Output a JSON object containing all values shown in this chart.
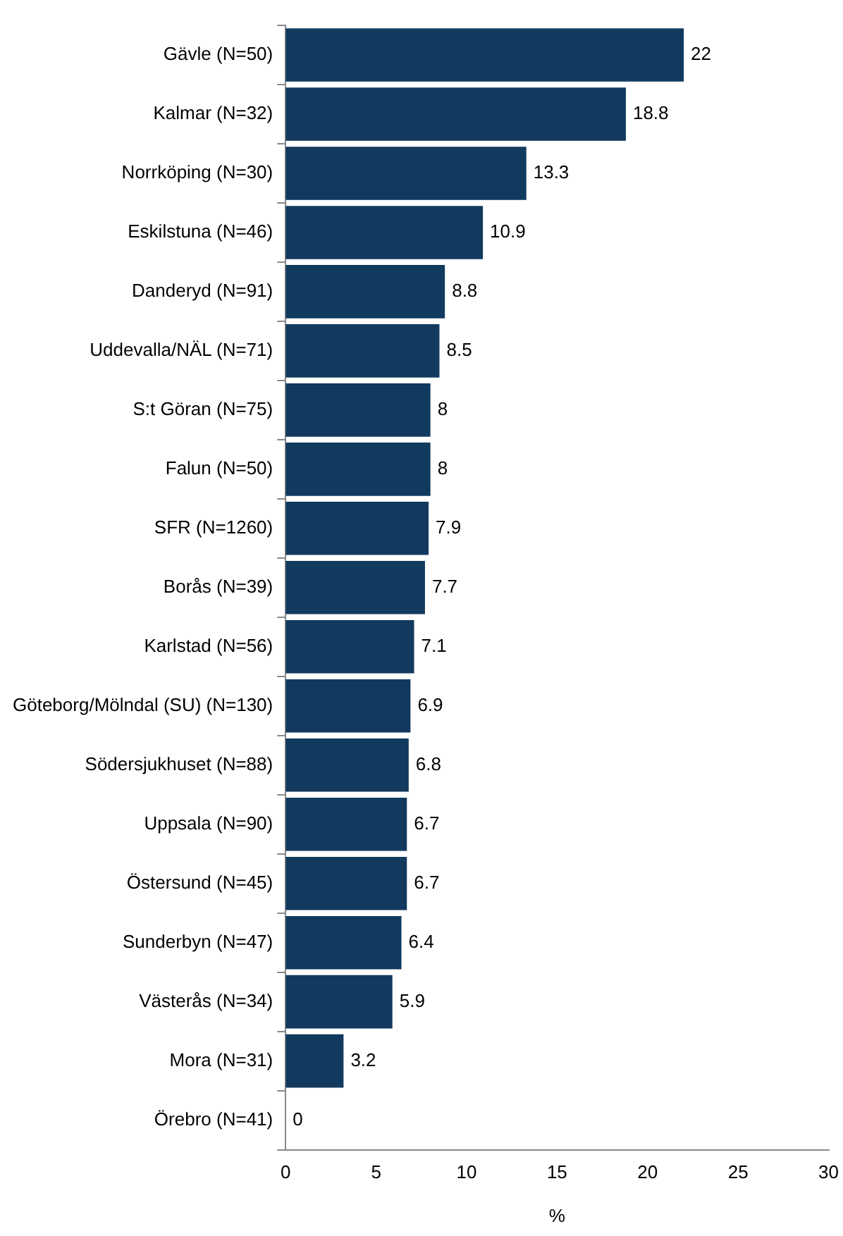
{
  "chart_data": {
    "type": "bar",
    "orientation": "horizontal",
    "xlabel": "%",
    "categories": [
      "Gävle (N=50)",
      "Kalmar (N=32)",
      "Norrköping (N=30)",
      "Eskilstuna (N=46)",
      "Danderyd (N=91)",
      "Uddevalla/NÄL (N=71)",
      "S:t Göran (N=75)",
      "Falun (N=50)",
      "SFR (N=1260)",
      "Borås (N=39)",
      "Karlstad (N=56)",
      "Göteborg/Mölndal (SU) (N=130)",
      "Södersjukhuset (N=88)",
      "Uppsala (N=90)",
      "Östersund (N=45)",
      "Sunderbyn (N=47)",
      "Västerås (N=34)",
      "Mora (N=31)",
      "Örebro (N=41)"
    ],
    "values": [
      22,
      18.8,
      13.3,
      10.9,
      8.8,
      8.5,
      8,
      8,
      7.9,
      7.7,
      7.1,
      6.9,
      6.8,
      6.7,
      6.7,
      6.4,
      5.9,
      3.2,
      0
    ],
    "color": "#113a5e",
    "xlim": [
      0,
      30
    ],
    "xticks": [
      0,
      5,
      10,
      15,
      20,
      25,
      30
    ],
    "data_labels": true,
    "grid": false,
    "legend": false
  }
}
